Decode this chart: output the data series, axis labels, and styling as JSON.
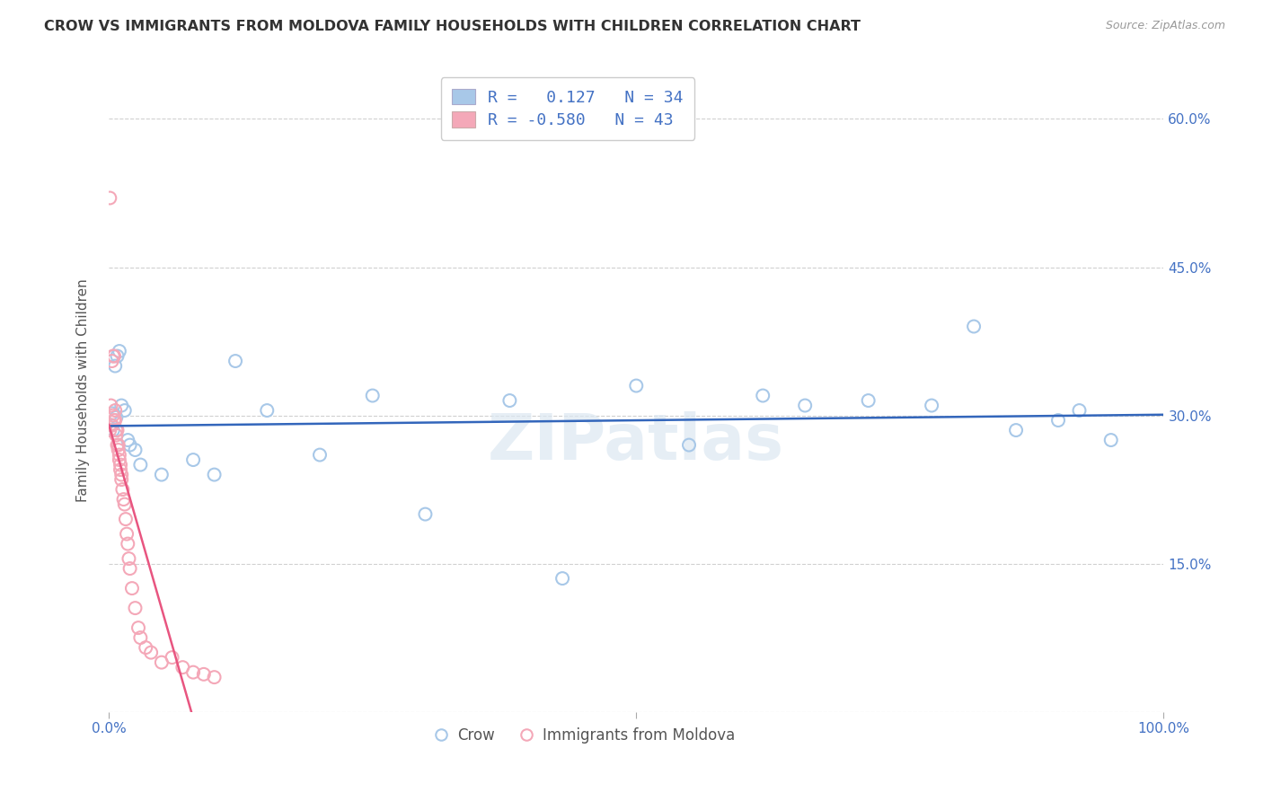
{
  "title": "CROW VS IMMIGRANTS FROM MOLDOVA FAMILY HOUSEHOLDS WITH CHILDREN CORRELATION CHART",
  "source": "Source: ZipAtlas.com",
  "ylabel": "Family Households with Children",
  "xlim": [
    0.0,
    1.0
  ],
  "ylim": [
    0.0,
    0.65
  ],
  "yticks": [
    0.0,
    0.15,
    0.3,
    0.45,
    0.6
  ],
  "yticklabels_right": [
    "",
    "15.0%",
    "30.0%",
    "45.0%",
    "60.0%"
  ],
  "xtick_positions": [
    0.0,
    0.5,
    1.0
  ],
  "xticklabels": [
    "0.0%",
    "",
    "100.0%"
  ],
  "crow_R": 0.127,
  "crow_N": 34,
  "moldova_R": -0.58,
  "moldova_N": 43,
  "crow_color": "#a8c8e8",
  "moldova_color": "#f4a8b8",
  "crow_line_color": "#3366bb",
  "moldova_line_color": "#e85580",
  "legend_label_crow": "Crow",
  "legend_label_moldova": "Immigrants from Moldova",
  "crow_x": [
    0.002,
    0.004,
    0.006,
    0.008,
    0.01,
    0.012,
    0.015,
    0.018,
    0.02,
    0.025,
    0.03,
    0.05,
    0.08,
    0.1,
    0.12,
    0.15,
    0.2,
    0.25,
    0.3,
    0.38,
    0.43,
    0.5,
    0.55,
    0.62,
    0.66,
    0.72,
    0.78,
    0.82,
    0.86,
    0.9,
    0.92,
    0.95,
    0.003,
    0.007
  ],
  "crow_y": [
    0.29,
    0.285,
    0.35,
    0.36,
    0.365,
    0.31,
    0.305,
    0.275,
    0.27,
    0.265,
    0.25,
    0.24,
    0.255,
    0.24,
    0.355,
    0.305,
    0.26,
    0.32,
    0.2,
    0.315,
    0.135,
    0.33,
    0.27,
    0.32,
    0.31,
    0.315,
    0.31,
    0.39,
    0.285,
    0.295,
    0.305,
    0.275,
    0.302,
    0.298
  ],
  "moldova_x": [
    0.001,
    0.002,
    0.003,
    0.003,
    0.004,
    0.004,
    0.005,
    0.005,
    0.006,
    0.006,
    0.007,
    0.007,
    0.008,
    0.008,
    0.009,
    0.009,
    0.01,
    0.01,
    0.011,
    0.011,
    0.012,
    0.012,
    0.013,
    0.014,
    0.015,
    0.016,
    0.017,
    0.018,
    0.019,
    0.02,
    0.022,
    0.025,
    0.028,
    0.03,
    0.035,
    0.04,
    0.05,
    0.06,
    0.07,
    0.08,
    0.09,
    0.1,
    0.001
  ],
  "moldova_y": [
    0.285,
    0.31,
    0.355,
    0.29,
    0.3,
    0.36,
    0.295,
    0.36,
    0.295,
    0.305,
    0.28,
    0.285,
    0.27,
    0.285,
    0.27,
    0.265,
    0.26,
    0.255,
    0.245,
    0.25,
    0.24,
    0.235,
    0.225,
    0.215,
    0.21,
    0.195,
    0.18,
    0.17,
    0.155,
    0.145,
    0.125,
    0.105,
    0.085,
    0.075,
    0.065,
    0.06,
    0.05,
    0.055,
    0.045,
    0.04,
    0.038,
    0.035,
    0.52
  ],
  "watermark": "ZIPatlas",
  "background_color": "#ffffff",
  "grid_color": "#d0d0d0"
}
